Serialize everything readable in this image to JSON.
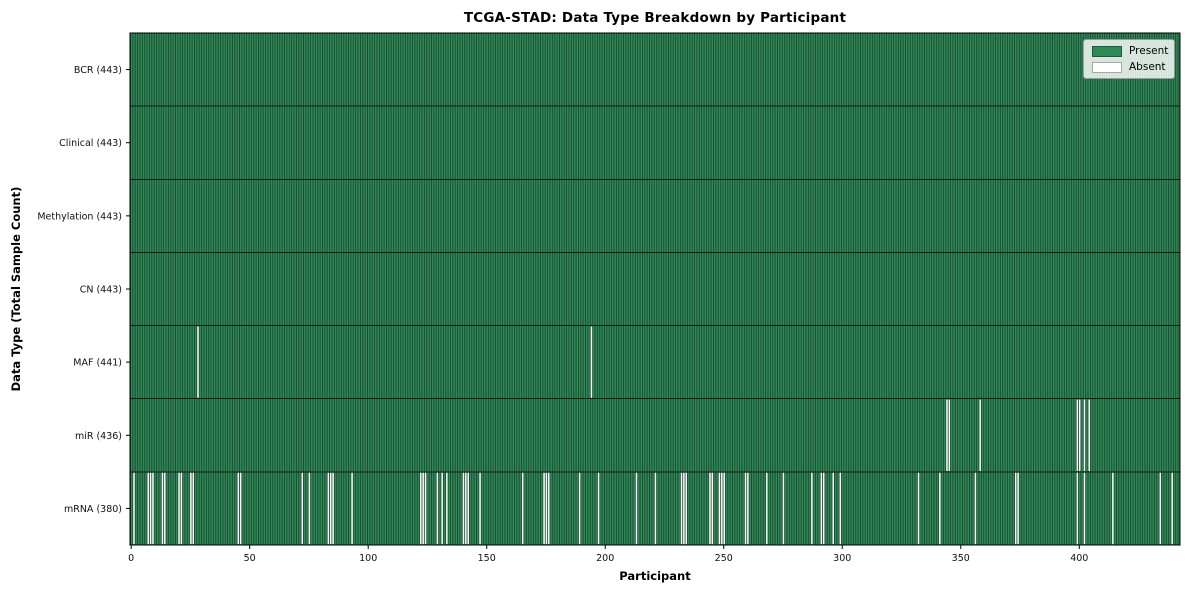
{
  "chart_data": {
    "type": "heatmap",
    "title": "TCGA-STAD: Data Type Breakdown by Participant",
    "xlabel": "Participant",
    "ylabel": "Data Type (Total Sample Count)",
    "n_participants": 443,
    "x_range": [
      0,
      442
    ],
    "x_ticks": [
      0,
      50,
      100,
      150,
      200,
      250,
      300,
      350,
      400
    ],
    "grid": false,
    "legend_position": "upper right",
    "legend": [
      {
        "label": "Present",
        "color": "#2e8b57"
      },
      {
        "label": "Absent",
        "color": "#ffffff"
      }
    ],
    "colors": {
      "present": "#2e8b57",
      "absent": "#ffffff",
      "bar_edge": "#1c4630",
      "row_divider": "#0d1f15",
      "spine": "#000000",
      "tick_text": "#111111"
    },
    "rows": [
      {
        "label": "BCR (443)",
        "present_count": 443,
        "absent_participants": []
      },
      {
        "label": "Clinical (443)",
        "present_count": 443,
        "absent_participants": []
      },
      {
        "label": "Methylation (443)",
        "present_count": 443,
        "absent_participants": []
      },
      {
        "label": "CN (443)",
        "present_count": 443,
        "absent_participants": []
      },
      {
        "label": "MAF (441)",
        "present_count": 441,
        "absent_participants": [
          28,
          194
        ]
      },
      {
        "label": "miR (436)",
        "present_count": 436,
        "absent_participants": [
          344,
          345,
          358,
          399,
          400,
          402,
          404
        ]
      },
      {
        "label": "mRNA (380)",
        "present_count": 380,
        "absent_participants": [
          1,
          7,
          8,
          9,
          13,
          14,
          20,
          21,
          25,
          26,
          45,
          46,
          72,
          75,
          83,
          84,
          85,
          93,
          122,
          123,
          124,
          129,
          131,
          133,
          140,
          141,
          142,
          147,
          165,
          174,
          175,
          176,
          189,
          197,
          213,
          221,
          232,
          233,
          234,
          244,
          245,
          248,
          249,
          250,
          259,
          260,
          268,
          275,
          287,
          291,
          292,
          296,
          299,
          332,
          341,
          356,
          373,
          374,
          399,
          402,
          414,
          434,
          439
        ]
      }
    ]
  }
}
